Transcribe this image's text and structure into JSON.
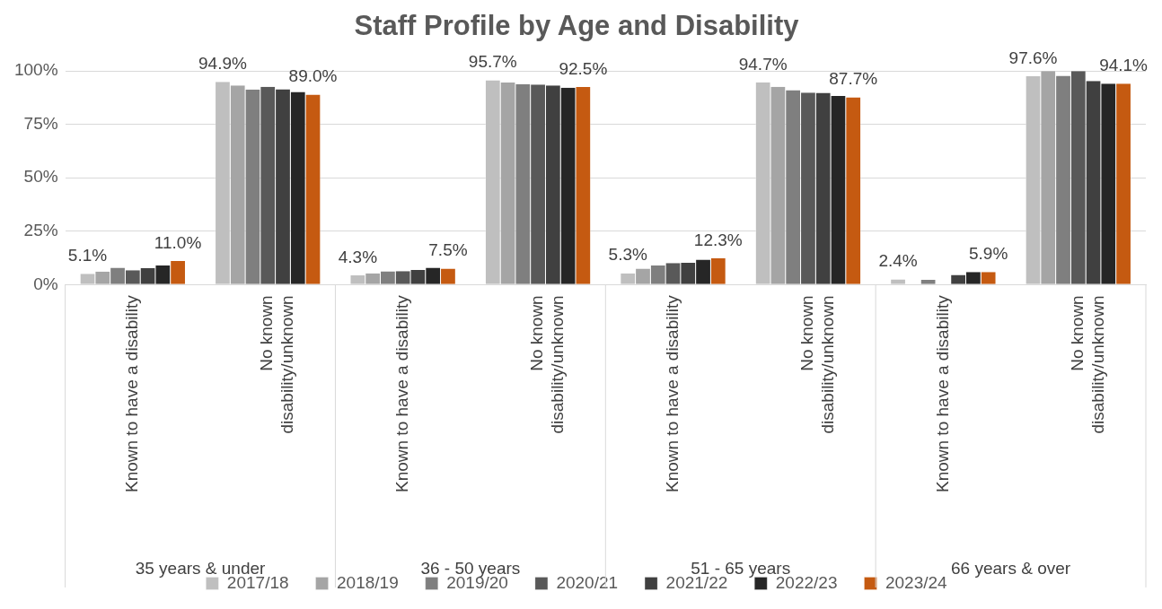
{
  "chart_data": {
    "type": "bar",
    "title": "Staff Profile by Age and Disability",
    "categories": [
      "Known to have a disability",
      "No known disability/unknown",
      "Known to have a disability",
      "No known disability/unknown",
      "Known to have a disability",
      "No known disability/unknown",
      "Known to have a disability",
      "No known disability/unknown"
    ],
    "annotations": [
      "35 years & under",
      "36 - 50 years",
      "51 - 65 years",
      "66 years & over"
    ],
    "series": [
      {
        "name": "2017/18",
        "color": "#bfbfbf",
        "values": [
          5.1,
          94.9,
          4.3,
          95.7,
          5.3,
          94.7,
          2.4,
          97.6
        ],
        "value_labels": [
          "5.1%",
          "94.9%",
          "4.3%",
          "95.7%",
          "5.3%",
          "94.7%",
          "2.4%",
          "97.6%"
        ]
      },
      {
        "name": "2018/19",
        "color": "#a5a5a5",
        "values": [
          6.1,
          93.3,
          5.3,
          94.6,
          7.5,
          92.6,
          0,
          100
        ]
      },
      {
        "name": "2019/20",
        "color": "#7f7f7f",
        "values": [
          7.9,
          91.4,
          6.2,
          93.9,
          8.9,
          91.1,
          2.2,
          97.8
        ]
      },
      {
        "name": "2020/21",
        "color": "#595959",
        "values": [
          6.7,
          92.6,
          6.3,
          93.7,
          10.1,
          89.9,
          0,
          100
        ]
      },
      {
        "name": "2021/22",
        "color": "#404040",
        "values": [
          7.7,
          91.5,
          6.9,
          93.3,
          10.2,
          89.8,
          4.5,
          95.4
        ]
      },
      {
        "name": "2022/23",
        "color": "#262626",
        "values": [
          8.9,
          90.2,
          7.9,
          92.2,
          11.7,
          88.3,
          5.9,
          94.1
        ]
      },
      {
        "name": "2023/24",
        "color": "#c55a11",
        "values": [
          11.0,
          89.0,
          7.5,
          92.5,
          12.3,
          87.7,
          5.9,
          94.1
        ],
        "value_labels": [
          "11.0%",
          "89.0%",
          "7.5%",
          "92.5%",
          "12.3%",
          "87.7%",
          "5.9%",
          "94.1%"
        ]
      }
    ],
    "ylim": [
      0,
      100
    ],
    "yticks": [
      {
        "value": 0,
        "label": "0%"
      },
      {
        "value": 25,
        "label": "25%"
      },
      {
        "value": 50,
        "label": "50%"
      },
      {
        "value": 75,
        "label": "75%"
      },
      {
        "value": 100,
        "label": "100%"
      }
    ],
    "grid": "y",
    "legend": "bottom"
  }
}
